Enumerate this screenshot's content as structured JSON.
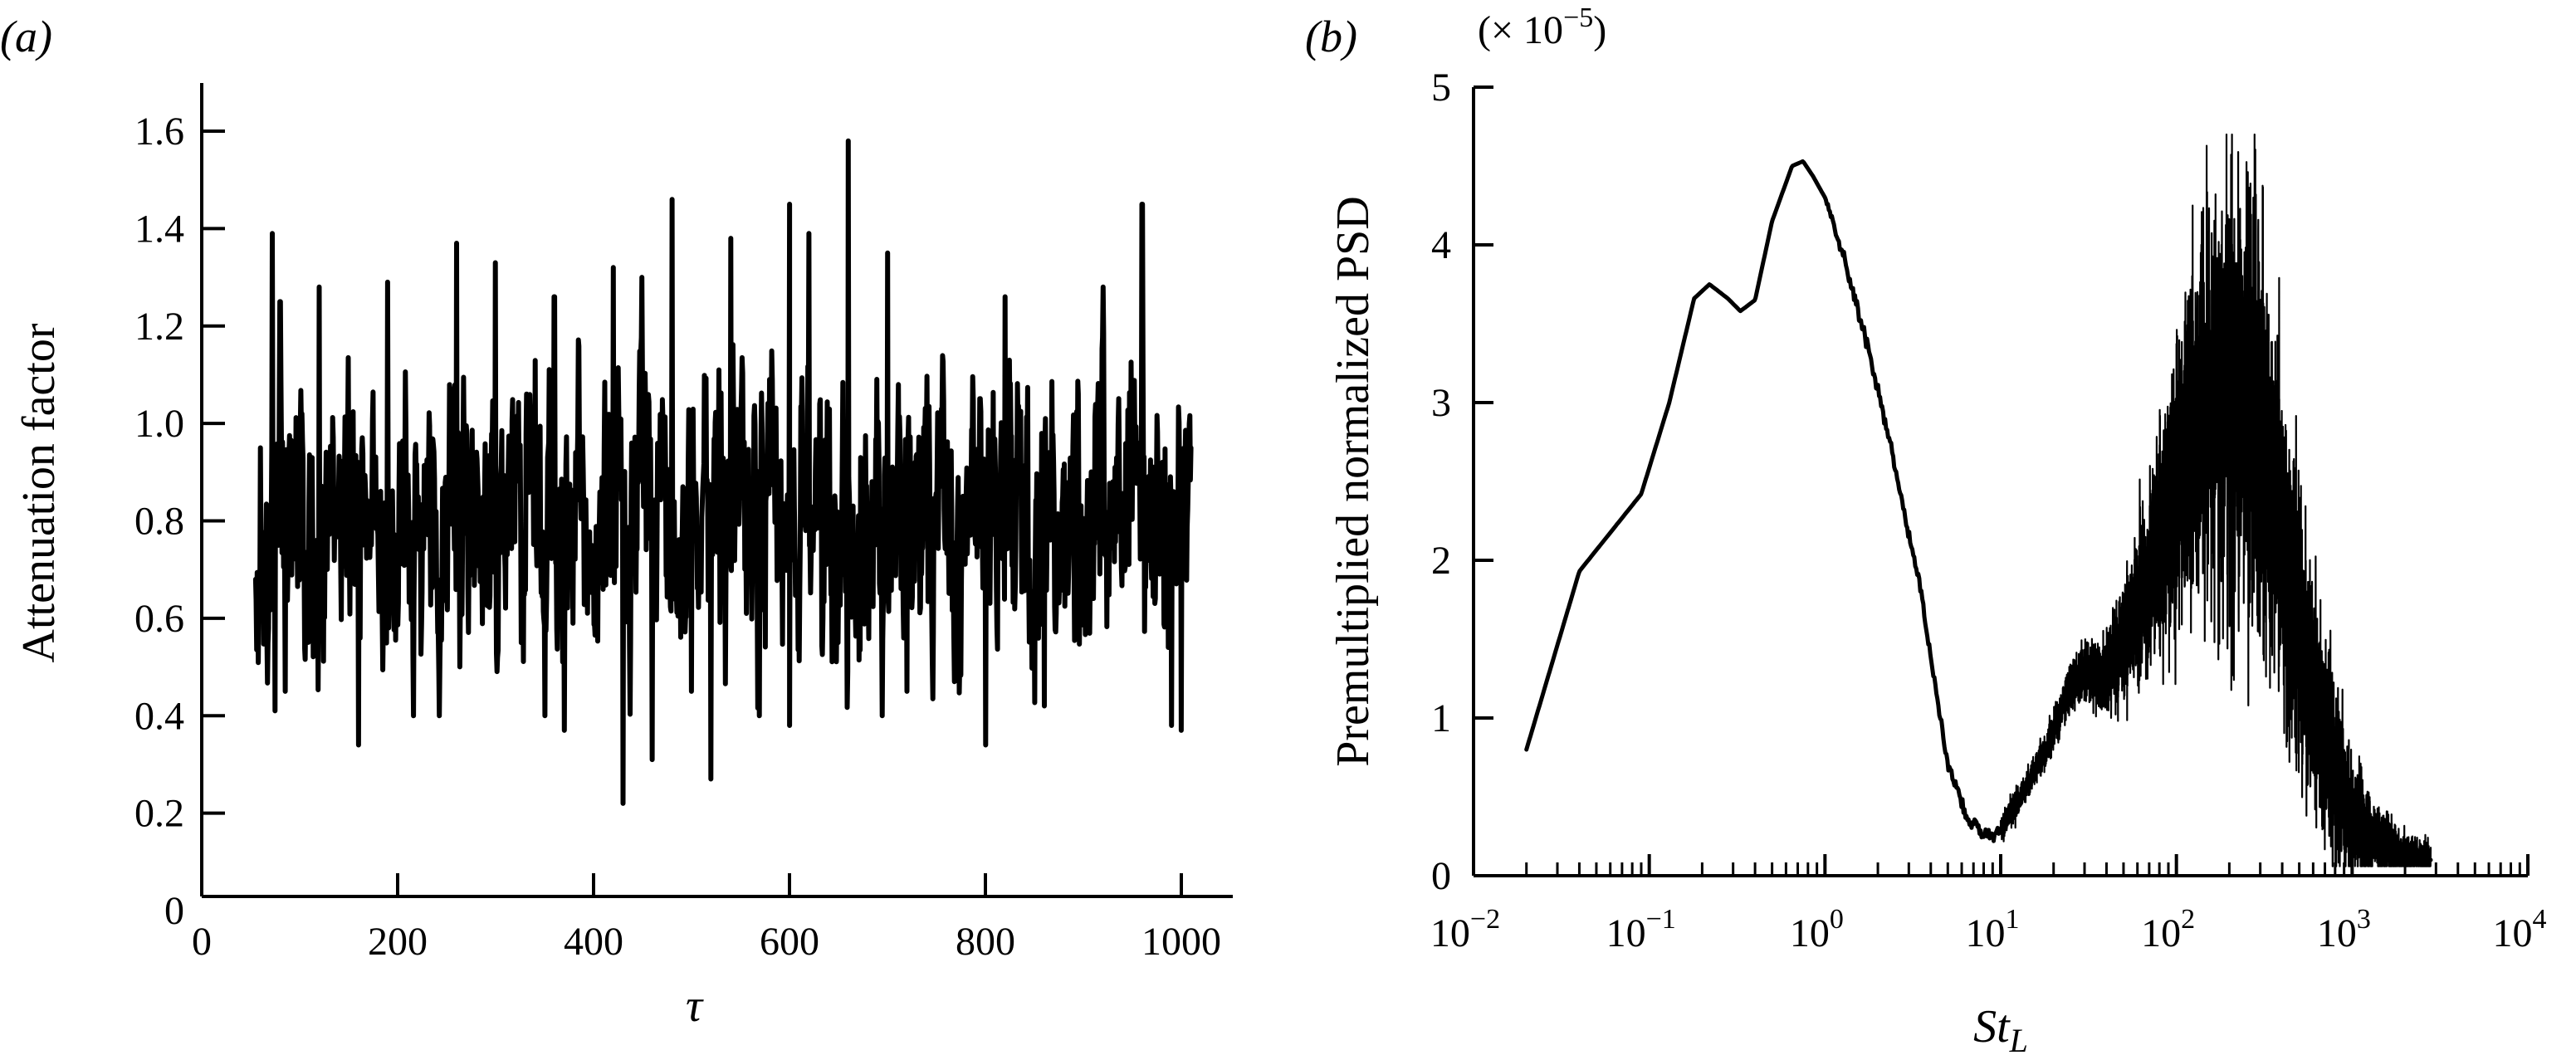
{
  "chart_data": [
    {
      "panel_label": "(a)",
      "type": "line",
      "xlabel": "τ",
      "ylabel": "Attenuation factor",
      "xlim": [
        0,
        1050
      ],
      "ylim": [
        0,
        1.7
      ],
      "x_ticks": [
        0,
        200,
        400,
        600,
        800,
        1000
      ],
      "x_tick_labels": [
        "0",
        "200",
        "400",
        "600",
        "800",
        "1000"
      ],
      "y_ticks": [
        0,
        0.2,
        0.4,
        0.6,
        0.8,
        1.0,
        1.2,
        1.4,
        1.6
      ],
      "y_tick_labels": [
        "0",
        "0.2",
        "0.4",
        "0.6",
        "0.8",
        "1.0",
        "1.2",
        "1.4",
        "1.6"
      ],
      "grid": false,
      "series": [
        {
          "x_range": [
            55,
            1010
          ],
          "mean": 0.8,
          "points": [
            [
              55,
              0.68
            ],
            [
              60,
              0.95
            ],
            [
              65,
              0.65
            ],
            [
              72,
              1.39
            ],
            [
              75,
              0.41
            ],
            [
              80,
              1.25
            ],
            [
              85,
              0.45
            ],
            [
              120,
              1.28
            ],
            [
              160,
              0.34
            ],
            [
              190,
              1.29
            ],
            [
              260,
              1.37
            ],
            [
              300,
              1.33
            ],
            [
              360,
              1.26
            ],
            [
              370,
              0.37
            ],
            [
              420,
              1.32
            ],
            [
              430,
              0.22
            ],
            [
              460,
              0.31
            ],
            [
              480,
              1.46
            ],
            [
              500,
              0.45
            ],
            [
              520,
              0.27
            ],
            [
              540,
              1.38
            ],
            [
              600,
              1.45
            ],
            [
              600,
              0.38
            ],
            [
              620,
              1.39
            ],
            [
              660,
              1.58
            ],
            [
              700,
              1.35
            ],
            [
              720,
              0.45
            ],
            [
              800,
              0.34
            ],
            [
              820,
              1.26
            ],
            [
              860,
              0.42
            ],
            [
              920,
              1.28
            ],
            [
              960,
              1.45
            ],
            [
              990,
              0.38
            ],
            [
              1000,
              0.37
            ],
            [
              1010,
              0.95
            ]
          ]
        }
      ]
    },
    {
      "panel_label": "(b)",
      "type": "line",
      "xlabel_base": "St",
      "xlabel_sub": "L",
      "ylabel": "Premultiplied normalized PSD",
      "y_multiplier": "(× 10",
      "y_multiplier_exp": "−5",
      "y_multiplier_close": ")",
      "x_scale": "log",
      "xlim": [
        0.01,
        10000
      ],
      "ylim": [
        0,
        5
      ],
      "x_ticks": [
        0.01,
        0.1,
        1,
        10,
        100,
        1000,
        10000
      ],
      "x_tick_labels": [
        {
          "base": "10",
          "exp": "−2"
        },
        {
          "base": "10",
          "exp": "−1"
        },
        {
          "base": "10",
          "exp": "0"
        },
        {
          "base": "10",
          "exp": "1"
        },
        {
          "base": "10",
          "exp": "2"
        },
        {
          "base": "10",
          "exp": "3"
        },
        {
          "base": "10",
          "exp": "4"
        }
      ],
      "y_ticks": [
        0,
        1,
        2,
        3,
        4,
        5
      ],
      "y_tick_labels": [
        "0",
        "1",
        "2",
        "3",
        "4",
        "5"
      ],
      "grid": false,
      "series": [
        {
          "points": [
            [
              0.02,
              0.8
            ],
            [
              0.04,
              1.93
            ],
            [
              0.09,
              2.42
            ],
            [
              0.13,
              3.0
            ],
            [
              0.18,
              3.66
            ],
            [
              0.22,
              3.75
            ],
            [
              0.28,
              3.66
            ],
            [
              0.33,
              3.58
            ],
            [
              0.4,
              3.65
            ],
            [
              0.5,
              4.15
            ],
            [
              0.65,
              4.5
            ],
            [
              0.75,
              4.53
            ],
            [
              0.85,
              4.44
            ],
            [
              1.0,
              4.3
            ],
            [
              1.3,
              3.9
            ],
            [
              1.8,
              3.3
            ],
            [
              2.5,
              2.6
            ],
            [
              3.5,
              1.8
            ],
            [
              5.0,
              0.7
            ],
            [
              6.5,
              0.35
            ],
            [
              8.0,
              0.26
            ],
            [
              9.0,
              0.28
            ],
            [
              10.0,
              0.3
            ],
            [
              13.0,
              0.5
            ],
            [
              18.0,
              0.8
            ],
            [
              25.0,
              1.2
            ],
            [
              30.0,
              1.3
            ],
            [
              38.0,
              1.25
            ],
            [
              50.0,
              1.5
            ],
            [
              70.0,
              1.9
            ],
            [
              100.0,
              2.55
            ],
            [
              150.0,
              3.0
            ],
            [
              200.0,
              3.0
            ],
            [
              250.0,
              2.95
            ],
            [
              300.0,
              2.7
            ],
            [
              400.0,
              2.2
            ],
            [
              500.0,
              1.6
            ],
            [
              650.0,
              0.9
            ],
            [
              800.0,
              0.6
            ],
            [
              1000.0,
              0.35
            ],
            [
              1500.0,
              0.2
            ],
            [
              2000.0,
              0.12
            ],
            [
              2800.0,
              0.1
            ]
          ],
          "noise_start": 10,
          "noise_peak_x": 230,
          "noise_peak_amplitude": 1.7,
          "noise_end": 2800
        }
      ]
    }
  ]
}
